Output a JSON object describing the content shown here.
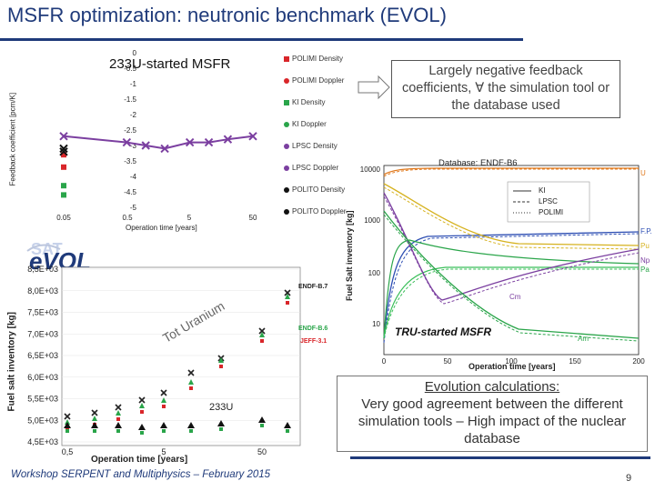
{
  "slide": {
    "title": "MSFR optimization: neutronic benchmark (EVOL)",
    "footer": "Workshop SERPENT and Multiphysics – February 2015",
    "page_number": "9"
  },
  "feedback_chart": {
    "title": "233U-started MSFR",
    "ylabel": "Feedback coefficient [pcm/K]",
    "xlabel": "Operation time [years]",
    "y_ticks": [
      "0",
      "-0.5",
      "-1",
      "-1.5",
      "-2",
      "-2.5",
      "-3",
      "-3.5",
      "-4",
      "-4.5",
      "-5"
    ],
    "x_ticks": [
      "0.05",
      "0.5",
      "5",
      "50"
    ],
    "legend": [
      {
        "label": "POLIMI Density",
        "color": "#d9262a",
        "marker": "square"
      },
      {
        "label": "POLIMI Doppler",
        "color": "#d9262a",
        "marker": "circle"
      },
      {
        "label": "KI Density",
        "color": "#2aa54a",
        "marker": "square"
      },
      {
        "label": "KI Doppler",
        "color": "#2aa54a",
        "marker": "circle"
      },
      {
        "label": "LPSC Density",
        "color": "#7b3fa0",
        "marker": "x"
      },
      {
        "label": "LPSC Doppler",
        "color": "#7b3fa0",
        "marker": "circle"
      },
      {
        "label": "POLITO Density",
        "color": "#111111",
        "marker": "x"
      },
      {
        "label": "POLITO Doppler",
        "color": "#111111",
        "marker": "circle"
      }
    ]
  },
  "callout": {
    "text": "Largely negative feedback coefficients, ∀ the simulation tool or the database used"
  },
  "logo": {
    "text": "eVOL"
  },
  "inventory_chart_left": {
    "ylabel": "Fuel salt inventory [kg]",
    "xlabel": "Operation time [years]",
    "y_ticks": [
      "8,5E+03",
      "8,0E+03",
      "7,5E+03",
      "7,0E+03",
      "6,5E+03",
      "6,0E+03",
      "5,5E+03",
      "5,0E+03",
      "4,5E+03"
    ],
    "x_ticks": [
      "0,5",
      "5",
      "50"
    ],
    "tot_uranium_label": "Tot Uranium",
    "u233_label": "233U",
    "db_labels": [
      "ENDF-B.7",
      "ENDF-B.6",
      "JEFF-3.1"
    ]
  },
  "inventory_chart_right": {
    "database_label": "Database: ENDF-B6",
    "ylabel": "Fuel Salt inventory [kg]",
    "xlabel": "Operation time [years]",
    "y_ticks": [
      "10000",
      "1000",
      "100",
      "10"
    ],
    "x_ticks": [
      "0",
      "50",
      "100",
      "150",
      "200"
    ],
    "legend": [
      "KI",
      "LPSC",
      "POLIMI"
    ],
    "right_labels": [
      "U",
      "F.P.",
      "Pu",
      "Np",
      "Pa"
    ],
    "curve_labels": [
      "Cm",
      "Am"
    ],
    "subtitle": "TRU-started MSFR"
  },
  "evolution_box": {
    "heading": "Evolution calculations:",
    "body": "Very good agreement between the different simulation tools – High impact of the nuclear database"
  },
  "chart_data": [
    {
      "type": "scatter",
      "title": "233U-started MSFR",
      "xlabel": "Operation time [years]",
      "ylabel": "Feedback coefficient [pcm/K]",
      "ylim": [
        -5,
        0
      ],
      "x_scale": "log",
      "series": [
        {
          "name": "POLIMI Density",
          "x": [
            0.05,
            0.05
          ],
          "y": [
            -3.3,
            -3.7
          ]
        },
        {
          "name": "KI Density",
          "x": [
            0.05,
            0.05
          ],
          "y": [
            -4.3,
            -4.6
          ]
        },
        {
          "name": "LPSC Density",
          "x": [
            0.05,
            0.5,
            1,
            2,
            5,
            10,
            20,
            50
          ],
          "y": [
            -2.7,
            -2.9,
            -3.0,
            -3.1,
            -2.9,
            -2.9,
            -2.8,
            -2.7
          ]
        },
        {
          "name": "POLITO Density",
          "x": [
            0.05,
            0.05
          ],
          "y": [
            -3.1,
            -3.2
          ]
        }
      ]
    }
  ]
}
